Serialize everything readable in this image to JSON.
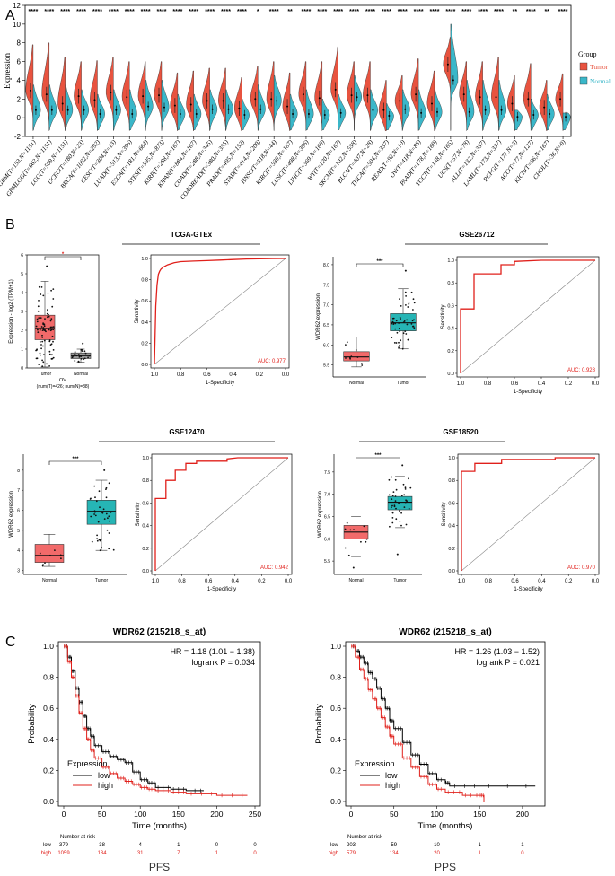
{
  "panels": {
    "a": "A",
    "b": "B",
    "c": "C"
  },
  "colors": {
    "tumor": "#E8533F",
    "normal": "#3AB7C9",
    "roc": "#E0201B",
    "km_low": "#000000",
    "km_high": "#E0201B",
    "box_tumor": "#26B5B5",
    "box_normal": "#F26A6A"
  },
  "chart_data": [
    {
      "id": "pan_cancer_violin",
      "type": "violin",
      "ylabel": "Expression",
      "ylim": [
        -2,
        12
      ],
      "yticks": [
        -2,
        0,
        2,
        4,
        6,
        8,
        10,
        12
      ],
      "legend": {
        "title": "Group",
        "items": [
          "Tumor",
          "Normal"
        ],
        "position": "right"
      },
      "categories": [
        "GBM(T=153,N=1151)",
        "GBMLGG(T=662,N=1151)",
        "LGG(T=509,N=1151)",
        "UCEC(T=180,N=23)",
        "BRCA(T=1092,N=292)",
        "CESC(T=304,N=13)",
        "LUAD(T=513,N=396)",
        "ESCA(T=181,N=664)",
        "STES(T=595,N=873)",
        "KIRP(T=288,N=167)",
        "KIPAN(T=884,N=167)",
        "COAD(T=288,N=345)",
        "COADREAD(T=380,N=355)",
        "PRAD(T=495,N=152)",
        "STAD(T=414,N=209)",
        "HNSC(T=518,N=44)",
        "KIRC(T=530,N=167)",
        "LUSC(T=498,N=396)",
        "LIHC(T=369,N=160)",
        "WT(T=120,N=167)",
        "SKCM(T=102,N=558)",
        "BLCA(T=407,N=28)",
        "THCA(T=504,N=337)",
        "READ(T=92,N=10)",
        "OV(T=418,N=88)",
        "PAAD(T=178,N=169)",
        "TGCT(T=148,N=165)",
        "UCS(T=57,N=78)",
        "ALL(T=132,N=337)",
        "LAML(T=173,N=337)",
        "PCPG(T=177,N=3)",
        "ACC(T=77,N=127)",
        "KICH(T=66,N=167)",
        "CHOL(T=36,N=9)"
      ],
      "significance": [
        "****",
        "****",
        "****",
        "****",
        "****",
        "****",
        "****",
        "****",
        "****",
        "****",
        "****",
        "****",
        "****",
        "****",
        "*",
        "****",
        "**",
        "****",
        "****",
        "****",
        "****",
        "****",
        "****",
        "****",
        "****",
        "****",
        "****",
        "****",
        "****",
        "****",
        "**",
        "****",
        "**",
        "****"
      ],
      "tumor_median": [
        2.9,
        2.5,
        1.5,
        2.3,
        1.9,
        2.7,
        2.2,
        2.3,
        2.4,
        1.3,
        1.4,
        1.8,
        1.8,
        1.0,
        2.0,
        2.0,
        1.2,
        2.5,
        2.1,
        3.0,
        2.4,
        2.4,
        0.8,
        1.8,
        2.5,
        1.5,
        5.7,
        2.5,
        2.2,
        2.2,
        1.5,
        2.0,
        1.1,
        2.0
      ],
      "tumor_max": [
        7.8,
        8.0,
        6.5,
        6.0,
        6.1,
        6.5,
        6.0,
        6.0,
        6.0,
        4.8,
        5.0,
        5.3,
        5.3,
        4.3,
        5.5,
        6.0,
        4.8,
        6.0,
        6.0,
        7.6,
        6.0,
        6.0,
        4.0,
        4.5,
        6.3,
        5.0,
        8.6,
        6.0,
        6.0,
        6.5,
        4.5,
        5.8,
        4.0,
        4.7
      ],
      "normal_median": [
        0.8,
        0.8,
        0.8,
        0.8,
        0.4,
        0.8,
        0.4,
        1.2,
        1.1,
        0.4,
        0.4,
        0.9,
        0.9,
        0.3,
        0.9,
        1.8,
        0.4,
        0.4,
        0.3,
        0.5,
        2.2,
        0.8,
        0.2,
        0.9,
        0.5,
        0.6,
        4.0,
        0.6,
        0.8,
        0.8,
        0.1,
        0.3,
        0.4,
        0.1
      ],
      "normal_max": [
        3.5,
        3.5,
        3.5,
        3.0,
        2.5,
        3.0,
        3.0,
        4.0,
        4.0,
        2.5,
        2.5,
        3.0,
        3.0,
        2.0,
        3.5,
        4.5,
        2.5,
        3.0,
        2.0,
        2.5,
        4.5,
        3.0,
        1.5,
        3.0,
        3.0,
        3.0,
        10.0,
        4.0,
        4.0,
        4.0,
        0.8,
        2.0,
        2.5,
        0.5
      ]
    },
    {
      "id": "tcga_gtex_box",
      "type": "box",
      "title": "OV",
      "subtitle": "(num(T)=426; num(N)=88)",
      "ylabel": "Expression - log2 (TPM+1)",
      "ylim": [
        0,
        6
      ],
      "yticks": [
        0,
        1,
        2,
        3,
        4,
        5,
        6
      ],
      "significance": "*",
      "groups": [
        {
          "name": "Tumor",
          "q1": 1.5,
          "median": 2.1,
          "q3": 2.8,
          "whisker_low": 0.05,
          "whisker_high": 4.6,
          "max": 5.4
        },
        {
          "name": "Normal",
          "q1": 0.5,
          "median": 0.65,
          "q3": 0.8,
          "whisker_low": 0.3,
          "whisker_high": 1.0,
          "max": 1.3
        }
      ]
    },
    {
      "id": "roc_tcga_gtex",
      "type": "line",
      "title": "TCGA-GTEx",
      "xlabel": "1-Specificity",
      "ylabel": "Sensitivity",
      "xticks": [
        1.0,
        0.8,
        0.6,
        0.4,
        0.2,
        0.0
      ],
      "yticks": [
        0.0,
        0.2,
        0.4,
        0.6,
        0.8,
        1.0
      ],
      "auc_label": "AUC: 0.977",
      "specificity": [
        1.0,
        0.99,
        0.98,
        0.97,
        0.96,
        0.95,
        0.93,
        0.9,
        0.85,
        0.8,
        0.7,
        0.6,
        0.5,
        0.4,
        0.3,
        0.2,
        0.1,
        0.0
      ],
      "sensitivity": [
        0.0,
        0.55,
        0.75,
        0.85,
        0.88,
        0.9,
        0.92,
        0.94,
        0.96,
        0.97,
        0.975,
        0.98,
        0.985,
        0.99,
        0.995,
        0.997,
        0.999,
        1.0
      ]
    },
    {
      "id": "gse26712_box",
      "type": "box",
      "title": "GSE26712",
      "ylabel": "WDR62 expression",
      "ylim": [
        5.2,
        8.2
      ],
      "yticks": [
        5.5,
        6.0,
        6.5,
        7.0,
        7.5,
        8.0
      ],
      "significance": "***",
      "groups": [
        {
          "name": "Normal",
          "q1": 5.6,
          "median": 5.7,
          "q3": 5.83,
          "whisker_low": 5.45,
          "whisker_high": 6.2
        },
        {
          "name": "Tumor",
          "q1": 6.35,
          "median": 6.55,
          "q3": 6.78,
          "whisker_low": 5.9,
          "whisker_high": 7.4,
          "max": 7.85
        }
      ]
    },
    {
      "id": "roc_gse26712",
      "type": "line",
      "title": "GSE26712",
      "xlabel": "1-Specificity",
      "ylabel": "Sensitivity",
      "xticks": [
        1.0,
        0.8,
        0.6,
        0.4,
        0.2,
        0.0
      ],
      "yticks": [
        0.0,
        0.2,
        0.4,
        0.6,
        0.8,
        1.0
      ],
      "auc_label": "AUC: 0.928",
      "specificity": [
        1.0,
        1.0,
        0.9,
        0.9,
        0.7,
        0.7,
        0.6,
        0.6,
        0.4,
        0.0
      ],
      "sensitivity": [
        0.0,
        0.57,
        0.57,
        0.88,
        0.88,
        0.96,
        0.96,
        0.99,
        1.0,
        1.0
      ]
    },
    {
      "id": "gse12470_box",
      "type": "box",
      "title": "GSE12470",
      "ylabel": "WDR62 expression",
      "ylim": [
        2.8,
        8.8
      ],
      "yticks": [
        3,
        4,
        5,
        6,
        7,
        8
      ],
      "significance": "***",
      "groups": [
        {
          "name": "Normal",
          "q1": 3.4,
          "median": 3.75,
          "q3": 4.3,
          "whisker_low": 3.2,
          "whisker_high": 4.8
        },
        {
          "name": "Tumor",
          "q1": 5.3,
          "median": 5.95,
          "q3": 6.5,
          "whisker_low": 4.0,
          "whisker_high": 7.5,
          "max": 8.0
        }
      ]
    },
    {
      "id": "roc_gse12470",
      "type": "line",
      "title": "GSE12470",
      "xlabel": "1-Specificity",
      "ylabel": "Sensitivity",
      "xticks": [
        1.0,
        0.8,
        0.6,
        0.4,
        0.2,
        0.0
      ],
      "yticks": [
        0.0,
        0.2,
        0.4,
        0.6,
        0.8,
        1.0
      ],
      "auc_label": "AUC: 0.942",
      "specificity": [
        1.0,
        1.0,
        0.92,
        0.92,
        0.85,
        0.85,
        0.77,
        0.77,
        0.69,
        0.69,
        0.46,
        0.46,
        0.38,
        0.0
      ],
      "sensitivity": [
        0.0,
        0.64,
        0.64,
        0.8,
        0.8,
        0.89,
        0.89,
        0.95,
        0.95,
        0.97,
        0.97,
        0.99,
        1.0,
        1.0
      ]
    },
    {
      "id": "gse18520_box",
      "type": "box",
      "title": "GSE18520",
      "ylabel": "WDR62 expression",
      "ylim": [
        5.2,
        7.9
      ],
      "yticks": [
        5.5,
        6.0,
        6.5,
        7.0,
        7.5
      ],
      "significance": "***",
      "groups": [
        {
          "name": "Normal",
          "q1": 6.0,
          "median": 6.15,
          "q3": 6.3,
          "whisker_low": 5.6,
          "whisker_high": 6.5,
          "min": 5.35
        },
        {
          "name": "Tumor",
          "q1": 6.65,
          "median": 6.82,
          "q3": 6.95,
          "whisker_low": 6.25,
          "whisker_high": 7.4,
          "max": 7.65,
          "min": 5.65
        }
      ]
    },
    {
      "id": "roc_gse18520",
      "type": "line",
      "title": "GSE18520",
      "xlabel": "1-Specificity",
      "ylabel": "Sensitivity",
      "xticks": [
        1.0,
        0.8,
        0.6,
        0.4,
        0.2,
        0.0
      ],
      "yticks": [
        0.0,
        0.2,
        0.4,
        0.6,
        0.8,
        1.0
      ],
      "auc_label": "AUC: 0.970",
      "specificity": [
        1.0,
        1.0,
        0.9,
        0.9,
        0.7,
        0.7,
        0.3,
        0.3,
        0.0
      ],
      "sensitivity": [
        0.0,
        0.88,
        0.88,
        0.95,
        0.95,
        0.985,
        0.985,
        1.0,
        1.0
      ]
    },
    {
      "id": "km_pfs",
      "type": "line",
      "title": "WDR62 (215218_s_at)",
      "hr_text": "HR = 1.18 (1.01 − 1.38)",
      "p_text": "logrank P = 0.034",
      "xlabel": "Time (months)",
      "ylabel": "Probability",
      "xlim": [
        0,
        250
      ],
      "xticks": [
        0,
        50,
        100,
        150,
        200,
        250
      ],
      "yticks": [
        0.0,
        0.2,
        0.4,
        0.6,
        0.8,
        1.0
      ],
      "legend_title": "Expression",
      "series": [
        {
          "name": "low",
          "x": [
            0,
            5,
            10,
            15,
            20,
            25,
            30,
            35,
            40,
            50,
            60,
            70,
            80,
            90,
            100,
            110,
            120,
            140,
            160,
            183
          ],
          "y": [
            1.0,
            0.93,
            0.84,
            0.73,
            0.64,
            0.55,
            0.47,
            0.42,
            0.36,
            0.32,
            0.29,
            0.27,
            0.25,
            0.19,
            0.14,
            0.12,
            0.09,
            0.08,
            0.07,
            0.07
          ]
        },
        {
          "name": "high",
          "x": [
            0,
            5,
            10,
            15,
            20,
            25,
            30,
            35,
            40,
            50,
            60,
            70,
            80,
            90,
            100,
            110,
            120,
            140,
            160,
            200,
            240
          ],
          "y": [
            1.0,
            0.9,
            0.8,
            0.68,
            0.57,
            0.47,
            0.4,
            0.33,
            0.28,
            0.22,
            0.18,
            0.15,
            0.13,
            0.11,
            0.09,
            0.08,
            0.07,
            0.06,
            0.05,
            0.04,
            0.04
          ]
        }
      ],
      "risk_table": {
        "label": "Number at risk",
        "times": [
          0,
          50,
          100,
          150,
          200,
          250
        ],
        "rows": [
          {
            "name": "low",
            "values": [
              "379",
              "38",
              "4",
              "1",
              "0",
              "0"
            ]
          },
          {
            "name": "high",
            "values": [
              "1059",
              "134",
              "31",
              "7",
              "1",
              "0"
            ]
          }
        ]
      },
      "footer": "PFS"
    },
    {
      "id": "km_pps",
      "type": "line",
      "title": "WDR62 (215218_s_at)",
      "hr_text": "HR = 1.26 (1.03 − 1.52)",
      "p_text": "logrank P = 0.021",
      "xlabel": "Time (months)",
      "ylabel": "Probability",
      "xlim": [
        0,
        220
      ],
      "xticks": [
        0,
        50,
        100,
        150,
        200
      ],
      "yticks": [
        0.0,
        0.2,
        0.4,
        0.6,
        0.8,
        1.0
      ],
      "legend_title": "Expression",
      "series": [
        {
          "name": "low",
          "x": [
            0,
            5,
            10,
            15,
            20,
            25,
            30,
            35,
            40,
            45,
            50,
            60,
            70,
            80,
            90,
            100,
            110,
            115,
            150,
            215
          ],
          "y": [
            1.0,
            0.97,
            0.93,
            0.89,
            0.83,
            0.79,
            0.73,
            0.66,
            0.6,
            0.52,
            0.47,
            0.38,
            0.3,
            0.24,
            0.18,
            0.14,
            0.12,
            0.1,
            0.1,
            0.1
          ]
        },
        {
          "name": "high",
          "x": [
            0,
            5,
            10,
            15,
            20,
            25,
            30,
            35,
            40,
            45,
            50,
            60,
            70,
            80,
            90,
            100,
            110,
            130,
            150,
            155
          ],
          "y": [
            1.0,
            0.93,
            0.85,
            0.79,
            0.72,
            0.66,
            0.6,
            0.54,
            0.48,
            0.42,
            0.37,
            0.28,
            0.22,
            0.16,
            0.11,
            0.08,
            0.06,
            0.04,
            0.04,
            0.0
          ]
        }
      ],
      "risk_table": {
        "label": "Number at risk",
        "times": [
          0,
          50,
          100,
          150,
          200
        ],
        "rows": [
          {
            "name": "low",
            "values": [
              "203",
              "59",
              "10",
              "1",
              "1"
            ]
          },
          {
            "name": "high",
            "values": [
              "579",
              "134",
              "20",
              "1",
              "0"
            ]
          }
        ]
      },
      "footer": "PPS"
    }
  ]
}
